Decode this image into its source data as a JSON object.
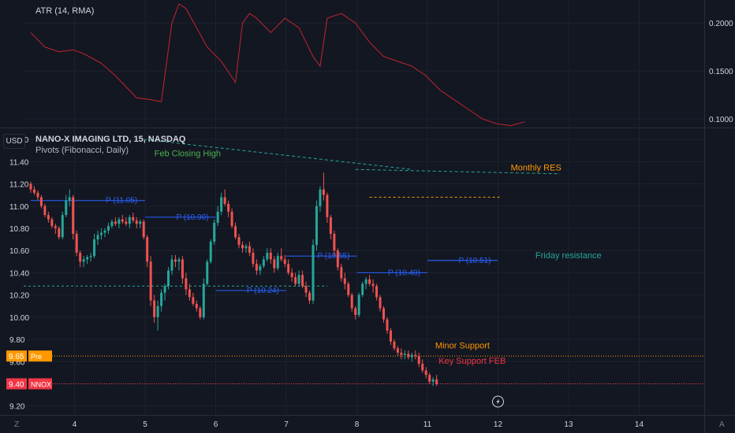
{
  "header": {
    "currency_button": "USD",
    "atr_title": "ATR (14, RMA)",
    "symbol_title": "NANO-X IMAGING LTD, 15, NASDAQ",
    "pivot_title": "Pivots (Fibonacci, Daily)"
  },
  "footer": {
    "scale_left": "Z",
    "scale_right": "A"
  },
  "chart_data": [
    {
      "type": "line",
      "panel": "ATR",
      "title": "ATR (14, RMA)",
      "color": "#c2252f",
      "y_ticks": [
        "0.2000",
        "0.1500",
        "0.1000"
      ],
      "y_tick_values": [
        0.2,
        0.15,
        0.1
      ],
      "ylim": [
        0.091,
        0.224
      ],
      "x_day_index": [
        0.0,
        0.2,
        0.4,
        0.6,
        0.75,
        1.0,
        1.2,
        1.5,
        1.7,
        1.85,
        2.0,
        2.1,
        2.2,
        2.35,
        2.5,
        2.7,
        2.9,
        3.0,
        3.1,
        3.2,
        3.4,
        3.6,
        3.8,
        4.0,
        4.1,
        4.2,
        4.4,
        4.6,
        4.8,
        5.0,
        5.2,
        5.4,
        5.6,
        5.8,
        6.0,
        6.2,
        6.4,
        6.6,
        6.8,
        7.0
      ],
      "values": [
        0.19,
        0.175,
        0.17,
        0.172,
        0.168,
        0.158,
        0.145,
        0.122,
        0.12,
        0.118,
        0.2,
        0.22,
        0.215,
        0.195,
        0.175,
        0.16,
        0.138,
        0.2,
        0.21,
        0.205,
        0.19,
        0.205,
        0.195,
        0.165,
        0.155,
        0.205,
        0.21,
        0.2,
        0.18,
        0.165,
        0.16,
        0.155,
        0.145,
        0.13,
        0.12,
        0.11,
        0.1,
        0.095,
        0.093,
        0.097
      ]
    },
    {
      "type": "candlestick",
      "panel": "Price",
      "title": "NANO-X IMAGING LTD, 15, NASDAQ",
      "up_color": "#26a69a",
      "down_color": "#ef5350",
      "y_ticks": [
        "11.60",
        "11.40",
        "11.20",
        "11.00",
        "10.80",
        "10.60",
        "10.40",
        "10.20",
        "10.00",
        "9.80",
        "9.60",
        "9.40",
        "9.20"
      ],
      "y_tick_values": [
        11.6,
        11.4,
        11.2,
        11.0,
        10.8,
        10.6,
        10.4,
        10.2,
        10.0,
        9.8,
        9.6,
        9.4,
        9.2
      ],
      "ylim": [
        9.12,
        11.7
      ],
      "x_ticks": [
        "4",
        "5",
        "6",
        "7",
        "8",
        "11",
        "12",
        "13",
        "14"
      ],
      "x_tick_day_index": [
        0.62,
        1.62,
        2.62,
        3.62,
        4.62,
        5.62,
        6.62,
        7.62,
        8.62
      ],
      "price_label": {
        "value": "9.40",
        "symbol": "NNOX",
        "color": "#f23645"
      },
      "pre_label": {
        "value": "9.65",
        "tag": "Pre",
        "color": "#ff9800"
      },
      "pivots": [
        {
          "label": "P (11.05)",
          "price": 11.05,
          "start": 0.0,
          "end": 1.62
        },
        {
          "label": "P (10.90)",
          "price": 10.9,
          "start": 1.62,
          "end": 2.62
        },
        {
          "label": "P (10.24)",
          "price": 10.24,
          "start": 2.62,
          "end": 3.62
        },
        {
          "label": "P (10.55)",
          "price": 10.55,
          "start": 3.62,
          "end": 4.62
        },
        {
          "label": "P (10.40)",
          "price": 10.4,
          "start": 4.62,
          "end": 5.62
        },
        {
          "label": "P (10.51)",
          "price": 10.51,
          "start": 5.62,
          "end": 6.62
        }
      ],
      "annotations": [
        {
          "text": "Feb Closing High",
          "color": "#4caf50"
        },
        {
          "text": "Monthly RES",
          "color": "#ff9800"
        },
        {
          "text": "Friday resistance",
          "color": "#26a69a"
        },
        {
          "text": "Minor Support",
          "color": "#ff9800"
        },
        {
          "text": "Key Support FEB",
          "color": "#f23645"
        }
      ],
      "candles": [
        [
          0.0,
          11.2,
          11.22,
          11.12,
          11.15
        ],
        [
          0.05,
          11.15,
          11.18,
          11.1,
          11.12
        ],
        [
          0.1,
          11.12,
          11.14,
          11.05,
          11.08
        ],
        [
          0.15,
          11.08,
          11.1,
          10.98,
          11.0
        ],
        [
          0.2,
          11.0,
          11.02,
          10.9,
          10.92
        ],
        [
          0.25,
          10.92,
          10.95,
          10.85,
          10.88
        ],
        [
          0.3,
          10.88,
          10.9,
          10.8,
          10.82
        ],
        [
          0.35,
          10.82,
          10.84,
          10.75,
          10.8
        ],
        [
          0.4,
          10.8,
          10.82,
          10.7,
          10.72
        ],
        [
          0.45,
          10.72,
          10.95,
          10.7,
          10.92
        ],
        [
          0.5,
          10.92,
          11.1,
          10.9,
          11.05
        ],
        [
          0.55,
          11.05,
          11.15,
          11.0,
          11.08
        ],
        [
          0.6,
          11.08,
          11.1,
          10.7,
          10.75
        ],
        [
          0.65,
          10.75,
          10.78,
          10.55,
          10.58
        ],
        [
          0.7,
          10.58,
          10.6,
          10.45,
          10.5
        ],
        [
          0.75,
          10.5,
          10.55,
          10.45,
          10.52
        ],
        [
          0.8,
          10.52,
          10.56,
          10.48,
          10.54
        ],
        [
          0.85,
          10.54,
          10.58,
          10.5,
          10.55
        ],
        [
          0.9,
          10.55,
          10.75,
          10.53,
          10.7
        ],
        [
          0.95,
          10.7,
          10.78,
          10.65,
          10.74
        ],
        [
          1.0,
          10.74,
          10.8,
          10.7,
          10.76
        ],
        [
          1.05,
          10.76,
          10.8,
          10.72,
          10.78
        ],
        [
          1.1,
          10.78,
          10.85,
          10.75,
          10.82
        ],
        [
          1.15,
          10.82,
          10.88,
          10.8,
          10.86
        ],
        [
          1.2,
          10.86,
          10.9,
          10.82,
          10.84
        ],
        [
          1.25,
          10.84,
          10.9,
          10.8,
          10.88
        ],
        [
          1.3,
          10.88,
          10.92,
          10.84,
          10.86
        ],
        [
          1.35,
          10.86,
          10.9,
          10.82,
          10.84
        ],
        [
          1.4,
          10.84,
          10.92,
          10.8,
          10.9
        ],
        [
          1.45,
          10.9,
          10.94,
          10.85,
          10.87
        ],
        [
          1.5,
          10.87,
          10.9,
          10.8,
          10.84
        ],
        [
          1.55,
          10.84,
          10.88,
          10.8,
          10.86
        ],
        [
          1.6,
          10.86,
          10.88,
          10.7,
          10.72
        ],
        [
          1.65,
          10.72,
          10.74,
          10.45,
          10.5
        ],
        [
          1.7,
          10.5,
          10.55,
          10.1,
          10.15
        ],
        [
          1.75,
          10.15,
          10.2,
          9.95,
          10.0
        ],
        [
          1.8,
          10.0,
          10.15,
          9.88,
          10.1
        ],
        [
          1.85,
          10.1,
          10.25,
          10.05,
          10.22
        ],
        [
          1.9,
          10.22,
          10.3,
          10.15,
          10.28
        ],
        [
          1.95,
          10.28,
          10.45,
          10.25,
          10.42
        ],
        [
          2.0,
          10.42,
          10.56,
          10.38,
          10.52
        ],
        [
          2.05,
          10.52,
          10.56,
          10.45,
          10.5
        ],
        [
          2.1,
          10.5,
          10.54,
          10.42,
          10.52
        ],
        [
          2.15,
          10.52,
          10.55,
          10.3,
          10.35
        ],
        [
          2.2,
          10.35,
          10.4,
          10.2,
          10.25
        ],
        [
          2.25,
          10.25,
          10.3,
          10.15,
          10.18
        ],
        [
          2.3,
          10.18,
          10.22,
          10.1,
          10.12
        ],
        [
          2.35,
          10.12,
          10.15,
          10.05,
          10.08
        ],
        [
          2.4,
          10.08,
          10.1,
          9.98,
          10.0
        ],
        [
          2.45,
          10.0,
          10.35,
          9.98,
          10.3
        ],
        [
          2.5,
          10.3,
          10.52,
          10.28,
          10.5
        ],
        [
          2.55,
          10.5,
          10.7,
          10.48,
          10.68
        ],
        [
          2.6,
          10.68,
          10.88,
          10.65,
          10.85
        ],
        [
          2.65,
          10.85,
          11.0,
          10.82,
          10.95
        ],
        [
          2.7,
          10.95,
          11.12,
          10.92,
          11.08
        ],
        [
          2.75,
          11.08,
          11.15,
          11.0,
          11.02
        ],
        [
          2.8,
          11.02,
          11.05,
          10.9,
          10.95
        ],
        [
          2.85,
          10.95,
          10.98,
          10.8,
          10.82
        ],
        [
          2.9,
          10.82,
          10.85,
          10.7,
          10.72
        ],
        [
          2.95,
          10.72,
          10.75,
          10.62,
          10.65
        ],
        [
          3.0,
          10.65,
          10.68,
          10.58,
          10.62
        ],
        [
          3.05,
          10.62,
          10.66,
          10.58,
          10.64
        ],
        [
          3.1,
          10.64,
          10.68,
          10.55,
          10.58
        ],
        [
          3.15,
          10.58,
          10.62,
          10.45,
          10.48
        ],
        [
          3.2,
          10.48,
          10.52,
          10.38,
          10.42
        ],
        [
          3.25,
          10.42,
          10.48,
          10.38,
          10.46
        ],
        [
          3.3,
          10.46,
          10.55,
          10.44,
          10.52
        ],
        [
          3.35,
          10.52,
          10.62,
          10.5,
          10.58
        ],
        [
          3.4,
          10.58,
          10.62,
          10.48,
          10.52
        ],
        [
          3.45,
          10.52,
          10.55,
          10.4,
          10.44
        ],
        [
          3.5,
          10.44,
          10.58,
          10.42,
          10.55
        ],
        [
          3.55,
          10.55,
          10.62,
          10.5,
          10.52
        ],
        [
          3.6,
          10.52,
          10.56,
          10.45,
          10.48
        ],
        [
          3.65,
          10.48,
          10.52,
          10.38,
          10.4
        ],
        [
          3.7,
          10.4,
          10.44,
          10.32,
          10.36
        ],
        [
          3.75,
          10.36,
          10.4,
          10.28,
          10.3
        ],
        [
          3.8,
          10.3,
          10.42,
          10.28,
          10.38
        ],
        [
          3.85,
          10.38,
          10.42,
          10.26,
          10.28
        ],
        [
          3.9,
          10.28,
          10.32,
          10.18,
          10.22
        ],
        [
          3.95,
          10.22,
          10.24,
          10.12,
          10.15
        ],
        [
          4.0,
          10.15,
          10.7,
          10.12,
          10.65
        ],
        [
          4.05,
          10.65,
          11.05,
          10.6,
          11.0
        ],
        [
          4.1,
          11.0,
          11.18,
          10.95,
          11.15
        ],
        [
          4.15,
          11.15,
          11.3,
          11.05,
          11.1
        ],
        [
          4.2,
          11.1,
          11.12,
          10.85,
          10.9
        ],
        [
          4.25,
          10.9,
          10.92,
          10.7,
          10.75
        ],
        [
          4.3,
          10.75,
          10.78,
          10.55,
          10.6
        ],
        [
          4.35,
          10.6,
          10.62,
          10.42,
          10.45
        ],
        [
          4.4,
          10.45,
          10.48,
          10.32,
          10.35
        ],
        [
          4.45,
          10.35,
          10.4,
          10.25,
          10.3
        ],
        [
          4.5,
          10.3,
          10.32,
          10.18,
          10.2
        ],
        [
          4.55,
          10.2,
          10.22,
          10.05,
          10.08
        ],
        [
          4.6,
          10.08,
          10.1,
          9.98,
          10.02
        ],
        [
          4.65,
          10.02,
          10.22,
          10.0,
          10.2
        ],
        [
          4.7,
          10.2,
          10.32,
          10.18,
          10.3
        ],
        [
          4.75,
          10.3,
          10.36,
          10.25,
          10.34
        ],
        [
          4.8,
          10.34,
          10.38,
          10.28,
          10.3
        ],
        [
          4.85,
          10.3,
          10.34,
          10.22,
          10.28
        ],
        [
          4.9,
          10.28,
          10.3,
          10.15,
          10.18
        ],
        [
          4.95,
          10.18,
          10.2,
          10.05,
          10.08
        ],
        [
          5.0,
          10.08,
          10.1,
          9.95,
          9.98
        ],
        [
          5.05,
          9.98,
          10.0,
          9.85,
          9.88
        ],
        [
          5.1,
          9.88,
          9.9,
          9.75,
          9.78
        ],
        [
          5.15,
          9.78,
          9.8,
          9.7,
          9.72
        ],
        [
          5.2,
          9.72,
          9.74,
          9.65,
          9.68
        ],
        [
          5.25,
          9.68,
          9.72,
          9.62,
          9.66
        ],
        [
          5.3,
          9.66,
          9.7,
          9.62,
          9.67
        ],
        [
          5.35,
          9.67,
          9.7,
          9.62,
          9.64
        ],
        [
          5.4,
          9.64,
          9.68,
          9.6,
          9.66
        ],
        [
          5.45,
          9.66,
          9.7,
          9.62,
          9.65
        ],
        [
          5.5,
          9.65,
          9.68,
          9.55,
          9.58
        ],
        [
          5.55,
          9.58,
          9.62,
          9.5,
          9.52
        ],
        [
          5.6,
          9.52,
          9.55,
          9.45,
          9.48
        ],
        [
          5.65,
          9.48,
          9.5,
          9.4,
          9.42
        ],
        [
          5.7,
          9.42,
          9.46,
          9.38,
          9.44
        ],
        [
          5.75,
          9.44,
          9.48,
          9.38,
          9.4
        ]
      ]
    }
  ]
}
